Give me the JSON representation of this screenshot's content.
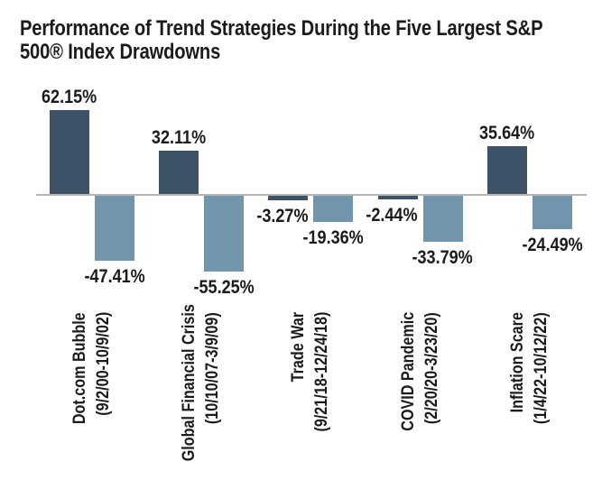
{
  "chart_data": {
    "type": "bar",
    "title": "Performance of Trend Strategies During the Five Largest S&P 500® Index Drawdowns",
    "title_lines": [
      "Performance of Trend Strategies During the Five Largest S&P",
      "500® Index Drawdowns"
    ],
    "categories": [
      "Dot.com Bubble",
      "Global Financial Crisis",
      "Trade War",
      "COVID Pandemic",
      "Inflation Scare"
    ],
    "category_dates": [
      "(9/2/00-10/9/02)",
      "(10/10/07-3/9/09)",
      "(9/21/18-12/24/18)",
      "(2/20/20-3/23/20)",
      "(1/4/22-10/12/22)"
    ],
    "series": [
      {
        "role": "dark-blue-bars",
        "color": "#3d5266",
        "values": [
          62.15,
          32.11,
          -3.27,
          -2.44,
          35.64
        ],
        "labels": [
          "62.15%",
          "32.11%",
          "-3.27%",
          "-2.44%",
          "35.64%"
        ]
      },
      {
        "role": "light-blue-bars",
        "color": "#7195ac",
        "values": [
          -47.41,
          -55.25,
          -19.36,
          -33.79,
          -24.49
        ],
        "labels": [
          "-47.41%",
          "-55.25%",
          "-19.36%",
          "-33.79%",
          "-24.49%"
        ]
      }
    ],
    "ylim": [
      -60,
      70
    ],
    "grid": false,
    "legend": null,
    "axis_line_color": "#b5b5b5",
    "text_color": "#1b1b1b",
    "background": "#ffffff"
  }
}
